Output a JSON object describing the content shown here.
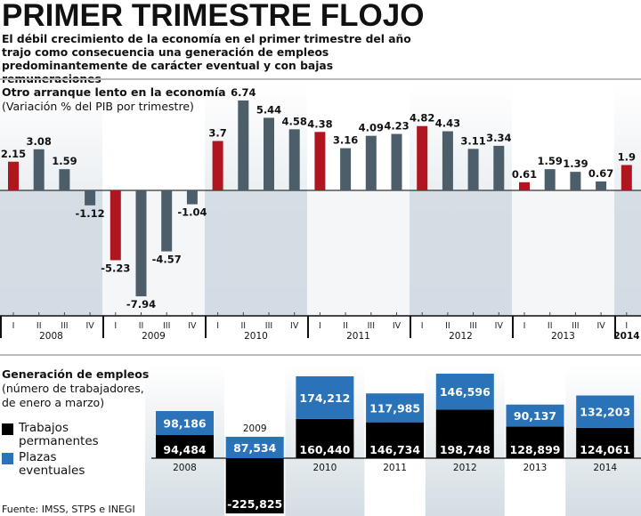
{
  "header": {
    "title": "PRIMER TRIMESTRE FLOJO",
    "subtitle": "El débil crecimiento de la economía en el primer trimestre del año trajo como consecuencia una generación de empleos predominantemente de carácter eventual y con bajas remuneraciones"
  },
  "colors": {
    "first_quarter": "#b0161f",
    "other_quarters": "#4b5e69",
    "permanent": "#000000",
    "eventual": "#2a73b8",
    "band": "#d3dde3"
  },
  "chart_data": [
    {
      "type": "bar",
      "title": "Otro arranque lento en la economía",
      "subtitle": "(Variación % del PIB por trimestre)",
      "years": [
        "2008",
        "2009",
        "2010",
        "2011",
        "2012",
        "2013",
        "2014"
      ],
      "quarter_labels": [
        "I",
        "II",
        "III",
        "IV"
      ],
      "values": [
        2.15,
        3.08,
        1.59,
        -1.12,
        -5.23,
        -7.94,
        -4.57,
        -1.04,
        3.7,
        6.74,
        5.44,
        4.58,
        4.38,
        3.16,
        4.09,
        4.23,
        4.82,
        4.43,
        3.11,
        3.34,
        0.61,
        1.59,
        1.39,
        0.67,
        1.9
      ],
      "value_labels": [
        "2.15",
        "3.08",
        "1.59",
        "-1.12",
        "-5.23",
        "-7.94",
        "-4.57",
        "-1.04",
        "3.7",
        "6.74",
        "5.44",
        "4.58",
        "4.38",
        "3.16",
        "4.09",
        "4.23",
        "4.82",
        "4.43",
        "3.11",
        "3.34",
        "0.61",
        "1.59",
        "1.39",
        "0.67",
        "1.9"
      ]
    },
    {
      "type": "bar",
      "stacked": true,
      "title": "Generación de empleos",
      "subtitle": "(número de trabajadores, de enero a marzo)",
      "categories": [
        "2008",
        "2009",
        "2010",
        "2011",
        "2012",
        "2013",
        "2014"
      ],
      "series": [
        {
          "name": "Trabajos permanentes",
          "values": [
            94484,
            -225825,
            160440,
            146734,
            198748,
            128899,
            124061
          ],
          "labels": [
            "94,484",
            "-225,825",
            "160,440",
            "146,734",
            "198,748",
            "128,899",
            "124,061"
          ]
        },
        {
          "name": "Plazas eventuales",
          "values": [
            98186,
            87534,
            174212,
            117985,
            146596,
            90137,
            132203
          ],
          "labels": [
            "98,186",
            "87,534",
            "174,212",
            "117,985",
            "146,596",
            "90,137",
            "132,203"
          ]
        }
      ]
    }
  ],
  "source": "Fuente: IMSS, STPS e INEGI"
}
